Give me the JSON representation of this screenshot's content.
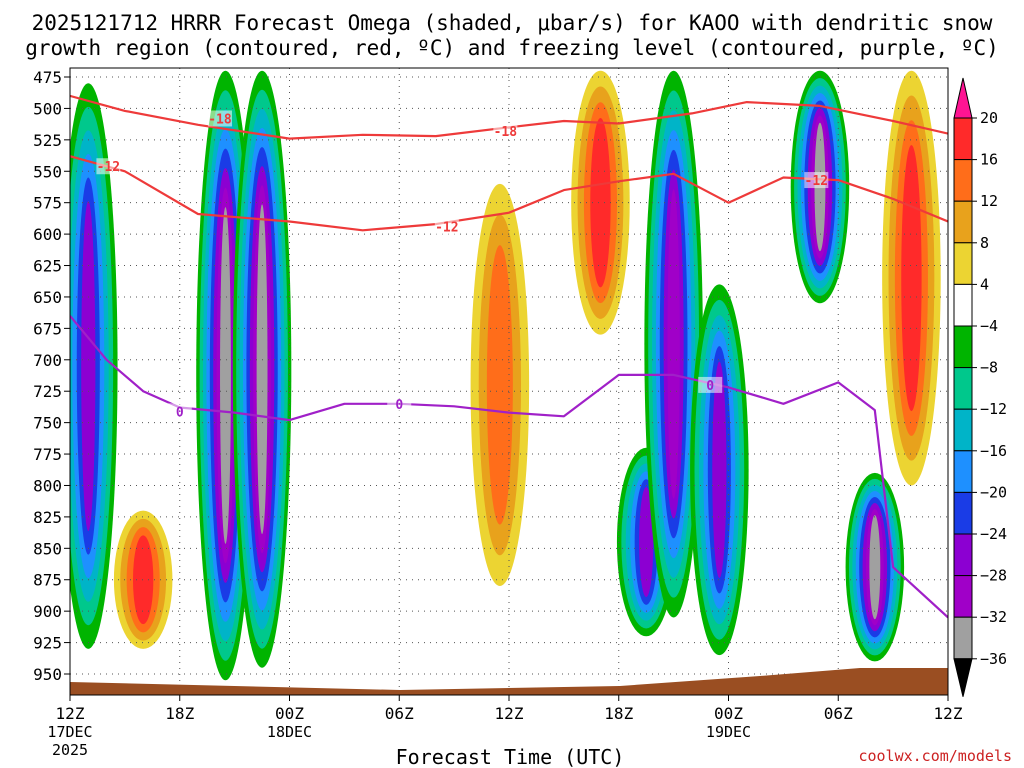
{
  "chart_data": {
    "type": "heatmap",
    "title_line1": "2025121712 HRRR Forecast Omega (shaded, μbar/s) for KAOO with dendritic snow",
    "title_line2": "growth region (contoured, red, ºC) and freezing level (contoured, purple, ºC)",
    "xlabel": "Forecast Time (UTC)",
    "credit": "coolwx.com/models",
    "x_hours": [
      0,
      6,
      12,
      18,
      24,
      30,
      36,
      42,
      48
    ],
    "x_ticks": [
      {
        "h": 0,
        "l1": "12Z",
        "l2": "17DEC",
        "l3": "2025"
      },
      {
        "h": 6,
        "l1": "18Z",
        "l2": "",
        "l3": ""
      },
      {
        "h": 12,
        "l1": "00Z",
        "l2": "18DEC",
        "l3": ""
      },
      {
        "h": 18,
        "l1": "06Z",
        "l2": "",
        "l3": ""
      },
      {
        "h": 24,
        "l1": "12Z",
        "l2": "",
        "l3": ""
      },
      {
        "h": 30,
        "l1": "18Z",
        "l2": "",
        "l3": ""
      },
      {
        "h": 36,
        "l1": "00Z",
        "l2": "19DEC",
        "l3": ""
      },
      {
        "h": 42,
        "l1": "06Z",
        "l2": "",
        "l3": ""
      },
      {
        "h": 48,
        "l1": "12Z",
        "l2": "",
        "l3": ""
      }
    ],
    "xlim": [
      0,
      48
    ],
    "y_ticks": [
      "475",
      "500",
      "525",
      "550",
      "575",
      "600",
      "625",
      "650",
      "675",
      "700",
      "725",
      "750",
      "775",
      "800",
      "825",
      "850",
      "875",
      "900",
      "925",
      "950"
    ],
    "ylim": [
      465,
      960
    ],
    "y_inverted": true,
    "colorbar": {
      "labels": [
        "20",
        "16",
        "12",
        "8",
        "4",
        "−4",
        "−8",
        "−12",
        "−16",
        "−20",
        "−24",
        "−28",
        "−32",
        "−36"
      ],
      "colors": [
        "#ff1493",
        "#ff2a2a",
        "#ff6d1a",
        "#e8a21c",
        "#ecd432",
        "#ffffff",
        "#00b400",
        "#00c88c",
        "#00b4c8",
        "#1e90ff",
        "#1a3ce6",
        "#8c00d2",
        "#a000c8",
        "#a0a0a0",
        "#000000"
      ]
    },
    "omega_field": {
      "units": "μbar/s",
      "features": [
        {
          "h": 1.0,
          "p_top": 480,
          "p_bot": 930,
          "omega": -26
        },
        {
          "h": 4.0,
          "p_top": 820,
          "p_bot": 930,
          "omega": 18
        },
        {
          "h": 8.5,
          "p_top": 470,
          "p_bot": 955,
          "omega": -36
        },
        {
          "h": 10.5,
          "p_top": 470,
          "p_bot": 945,
          "omega": -36
        },
        {
          "h": 23.5,
          "p_top": 560,
          "p_bot": 880,
          "omega": 14
        },
        {
          "h": 29.0,
          "p_top": 470,
          "p_bot": 680,
          "omega": 20
        },
        {
          "h": 31.5,
          "p_top": 770,
          "p_bot": 920,
          "omega": -28
        },
        {
          "h": 33.0,
          "p_top": 470,
          "p_bot": 905,
          "omega": -32
        },
        {
          "h": 35.5,
          "p_top": 640,
          "p_bot": 935,
          "omega": -26
        },
        {
          "h": 41.0,
          "p_top": 470,
          "p_bot": 655,
          "omega": -36
        },
        {
          "h": 44.0,
          "p_top": 790,
          "p_bot": 940,
          "omega": -36
        },
        {
          "h": 46.0,
          "p_top": 470,
          "p_bot": 800,
          "omega": 20
        }
      ]
    },
    "dgz_contours": [
      {
        "label": "-18",
        "units": "ºC",
        "points": [
          [
            0,
            490
          ],
          [
            3,
            502
          ],
          [
            7,
            513
          ],
          [
            12,
            524
          ],
          [
            16,
            521
          ],
          [
            20,
            522
          ],
          [
            24,
            515
          ],
          [
            27,
            510
          ],
          [
            30,
            512
          ],
          [
            34,
            504
          ],
          [
            37,
            495
          ],
          [
            41,
            498
          ],
          [
            45,
            510
          ],
          [
            48,
            520
          ]
        ]
      },
      {
        "label": "-12",
        "units": "ºC",
        "points": [
          [
            0,
            538
          ],
          [
            3,
            550
          ],
          [
            7,
            584
          ],
          [
            12,
            590
          ],
          [
            16,
            597
          ],
          [
            20,
            592
          ],
          [
            24,
            583
          ],
          [
            27,
            565
          ],
          [
            30,
            558
          ],
          [
            33,
            552
          ],
          [
            36,
            575
          ],
          [
            39,
            555
          ],
          [
            42,
            557
          ],
          [
            45,
            572
          ],
          [
            48,
            590
          ]
        ]
      }
    ],
    "freezing_level": {
      "label": "0",
      "units": "ºC",
      "points": [
        [
          0,
          665
        ],
        [
          2,
          700
        ],
        [
          4,
          725
        ],
        [
          6,
          738
        ],
        [
          9,
          742
        ],
        [
          12,
          748
        ],
        [
          15,
          735
        ],
        [
          18,
          735
        ],
        [
          21,
          737
        ],
        [
          24,
          742
        ],
        [
          27,
          745
        ],
        [
          30,
          712
        ],
        [
          33,
          712
        ],
        [
          36,
          722
        ],
        [
          39,
          735
        ],
        [
          42,
          718
        ],
        [
          44,
          740
        ],
        [
          45,
          865
        ],
        [
          48,
          905
        ]
      ]
    }
  }
}
